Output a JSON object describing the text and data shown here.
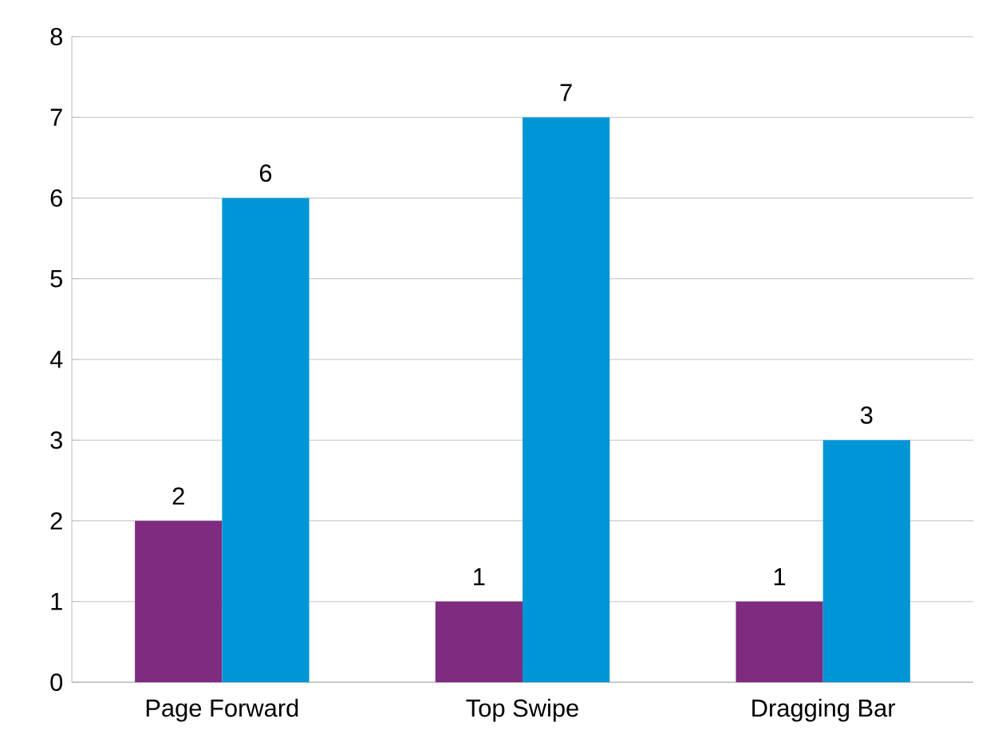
{
  "chart_data": {
    "type": "bar",
    "categories": [
      "Page Forward",
      "Top Swipe",
      "Dragging Bar"
    ],
    "series": [
      {
        "color": "#7f2b7f",
        "values": [
          2,
          1,
          1
        ]
      },
      {
        "color": "#0096d6",
        "values": [
          6,
          7,
          3
        ]
      }
    ],
    "ylim": [
      0,
      8
    ],
    "yticks": [
      0,
      1,
      2,
      3,
      4,
      5,
      6,
      7,
      8
    ],
    "grid": "y",
    "data_labels": true
  }
}
